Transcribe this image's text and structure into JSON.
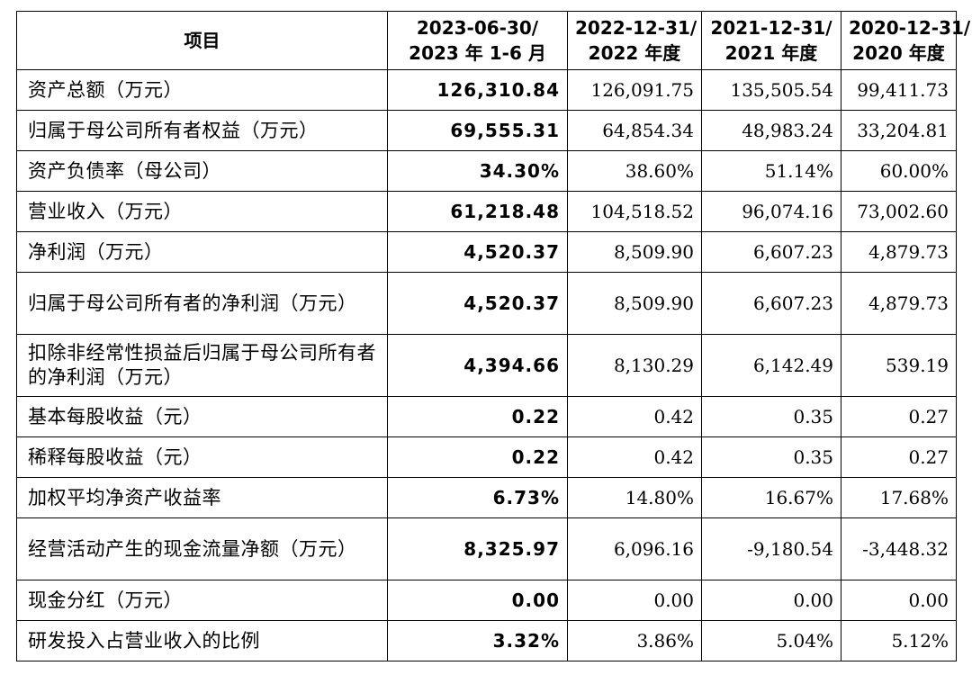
{
  "table": {
    "headers": [
      {
        "line1": "项目",
        "line2": ""
      },
      {
        "line1": "2023-06-30/",
        "line2": "2023 年 1-6 月"
      },
      {
        "line1": "2022-12-31/",
        "line2": "2022 年度"
      },
      {
        "line1": "2021-12-31/",
        "line2": "2021 年度"
      },
      {
        "line1": "2020-12-31/",
        "line2": "2020 年度"
      }
    ],
    "rows": [
      {
        "label": "资产总额（万元）",
        "values": [
          "126,310.84",
          "126,091.75",
          "135,505.54",
          "99,411.73"
        ]
      },
      {
        "label": "归属于母公司所有者权益（万元）",
        "values": [
          "69,555.31",
          "64,854.34",
          "48,983.24",
          "33,204.81"
        ]
      },
      {
        "label": "资产负债率（母公司）",
        "values": [
          "34.30%",
          "38.60%",
          "51.14%",
          "60.00%"
        ]
      },
      {
        "label": "营业收入（万元）",
        "values": [
          "61,218.48",
          "104,518.52",
          "96,074.16",
          "73,002.60"
        ]
      },
      {
        "label": "净利润（万元）",
        "values": [
          "4,520.37",
          "8,509.90",
          "6,607.23",
          "4,879.73"
        ]
      },
      {
        "label": "归属于母公司所有者的净利润（万元）",
        "values": [
          "4,520.37",
          "8,509.90",
          "6,607.23",
          "4,879.73"
        ]
      },
      {
        "label": "扣除非经常性损益后归属于母公司所有者的净利润（万元）",
        "values": [
          "4,394.66",
          "8,130.29",
          "6,142.49",
          "539.19"
        ]
      },
      {
        "label": "基本每股收益（元）",
        "values": [
          "0.22",
          "0.42",
          "0.35",
          "0.27"
        ]
      },
      {
        "label": "稀释每股收益（元）",
        "values": [
          "0.22",
          "0.42",
          "0.35",
          "0.27"
        ]
      },
      {
        "label": "加权平均净资产收益率",
        "values": [
          "6.73%",
          "14.80%",
          "16.67%",
          "17.68%"
        ]
      },
      {
        "label": "经营活动产生的现金流量净额（万元）",
        "values": [
          "8,325.97",
          "6,096.16",
          "-9,180.54",
          "-3,448.32"
        ]
      },
      {
        "label": "现金分红（万元）",
        "values": [
          "0.00",
          "0.00",
          "0.00",
          "0.00"
        ]
      },
      {
        "label": "研发投入占营业收入的比例",
        "values": [
          "3.32%",
          "3.86%",
          "5.04%",
          "5.12%"
        ]
      }
    ]
  }
}
